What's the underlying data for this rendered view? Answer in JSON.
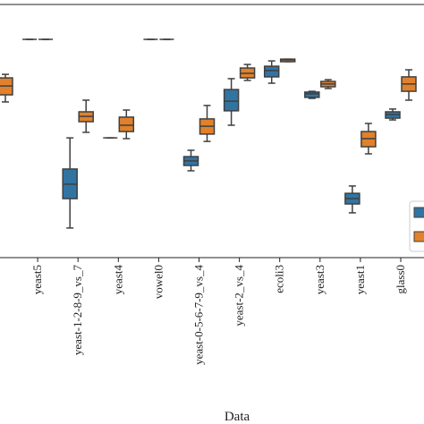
{
  "chart_data": {
    "type": "box",
    "x_label": "Data",
    "categories": [
      null,
      "yeast5",
      "yeast-1-2-8-9_vs_7",
      "yeast4",
      "vowel0",
      "yeast-0-5-6-7-9_vs_4",
      "yeast-2_vs_4",
      "ecoli3",
      "yeast3",
      "yeast1",
      "glass0"
    ],
    "ylim": [
      0,
      1
    ],
    "series": [
      {
        "color": "#3274a1",
        "values": [
          null,
          {
            "low": 0.862,
            "q1": 0.862,
            "median": 0.862,
            "q3": 0.862,
            "high": 0.862
          },
          {
            "low": 0.117,
            "q1": 0.233,
            "median": 0.29,
            "q3": 0.35,
            "high": 0.473
          },
          {
            "low": 0.473,
            "q1": 0.473,
            "median": 0.473,
            "q3": 0.473,
            "high": 0.473
          },
          {
            "low": 0.862,
            "q1": 0.862,
            "median": 0.862,
            "q3": 0.862,
            "high": 0.862
          },
          {
            "low": 0.343,
            "q1": 0.364,
            "median": 0.382,
            "q3": 0.399,
            "high": 0.424
          },
          {
            "low": 0.523,
            "q1": 0.58,
            "median": 0.618,
            "q3": 0.664,
            "high": 0.707
          },
          {
            "low": 0.689,
            "q1": 0.714,
            "median": 0.739,
            "q3": 0.756,
            "high": 0.777
          },
          {
            "low": 0.629,
            "q1": 0.633,
            "median": 0.647,
            "q3": 0.654,
            "high": 0.657
          },
          {
            "low": 0.177,
            "q1": 0.212,
            "median": 0.233,
            "q3": 0.254,
            "high": 0.283
          },
          {
            "low": 0.544,
            "q1": 0.551,
            "median": 0.565,
            "q3": 0.576,
            "high": 0.587
          }
        ]
      },
      {
        "color": "#e1812c",
        "values": [
          {
            "low": 0.615,
            "q1": 0.643,
            "median": 0.678,
            "q3": 0.71,
            "high": 0.724
          },
          {
            "low": 0.862,
            "q1": 0.862,
            "median": 0.862,
            "q3": 0.862,
            "high": 0.862
          },
          {
            "low": 0.495,
            "q1": 0.537,
            "median": 0.558,
            "q3": 0.576,
            "high": 0.622
          },
          {
            "low": 0.47,
            "q1": 0.498,
            "median": 0.523,
            "q3": 0.555,
            "high": 0.583
          },
          {
            "low": 0.862,
            "q1": 0.862,
            "median": 0.862,
            "q3": 0.862,
            "high": 0.862
          },
          {
            "low": 0.459,
            "q1": 0.488,
            "median": 0.519,
            "q3": 0.548,
            "high": 0.601
          },
          {
            "low": 0.7,
            "q1": 0.71,
            "median": 0.728,
            "q3": 0.749,
            "high": 0.763
          },
          {
            "low": 0.774,
            "q1": 0.774,
            "median": 0.781,
            "q3": 0.784,
            "high": 0.784
          },
          {
            "low": 0.668,
            "q1": 0.675,
            "median": 0.686,
            "q3": 0.696,
            "high": 0.703
          },
          {
            "low": 0.41,
            "q1": 0.438,
            "median": 0.47,
            "q3": 0.498,
            "high": 0.53
          },
          {
            "low": 0.622,
            "q1": 0.657,
            "median": 0.686,
            "q3": 0.714,
            "high": 0.742
          }
        ]
      }
    ]
  }
}
